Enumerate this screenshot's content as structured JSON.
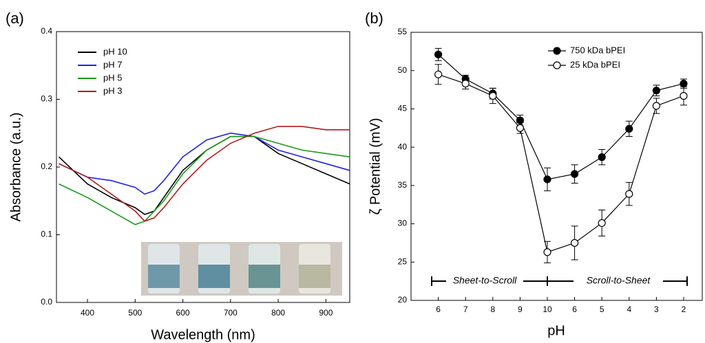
{
  "chart_data": [
    {
      "type": "line",
      "panel_label": "(a)",
      "x_label": "Wavelength (nm)",
      "y_label": "Absorbance (a.u.)",
      "x": [
        340,
        400,
        450,
        500,
        520,
        540,
        560,
        600,
        650,
        700,
        750,
        800,
        850,
        900,
        950
      ],
      "series": [
        {
          "name": "pH 10",
          "color": "#000000",
          "values": [
            0.215,
            0.175,
            0.155,
            0.14,
            0.13,
            0.135,
            0.155,
            0.195,
            0.225,
            0.245,
            0.245,
            0.22,
            0.205,
            0.19,
            0.175
          ]
        },
        {
          "name": "pH 7",
          "color": "#1f1fe6",
          "values": [
            0.205,
            0.185,
            0.18,
            0.17,
            0.16,
            0.165,
            0.18,
            0.215,
            0.24,
            0.25,
            0.245,
            0.225,
            0.215,
            0.205,
            0.195
          ]
        },
        {
          "name": "pH 5",
          "color": "#1a9a1a",
          "values": [
            0.175,
            0.155,
            0.135,
            0.115,
            0.12,
            0.135,
            0.15,
            0.19,
            0.225,
            0.245,
            0.245,
            0.235,
            0.225,
            0.22,
            0.215
          ]
        },
        {
          "name": "pH 3",
          "color": "#b01c1c",
          "values": [
            0.205,
            0.185,
            0.16,
            0.135,
            0.12,
            0.125,
            0.14,
            0.175,
            0.21,
            0.235,
            0.25,
            0.26,
            0.26,
            0.255,
            0.255
          ]
        }
      ],
      "xlim": [
        335,
        950
      ],
      "ylim": [
        0,
        0.4
      ],
      "xticks": [
        400,
        500,
        600,
        700,
        800,
        900
      ],
      "yticks": [
        {
          "value": 0,
          "label": "0.0"
        },
        0.1,
        0.2,
        0.3,
        0.4
      ],
      "legend": "upper left"
    },
    {
      "type": "errorbar-line",
      "panel_label": "(b)",
      "x_label": "pH",
      "y_label": "ζ Potential (mV)",
      "categories": [
        "6",
        "7",
        "8",
        "9",
        "10",
        "6",
        "5",
        "4",
        "3",
        "2"
      ],
      "series": [
        {
          "name": "750 kDa bPEI",
          "color": "#000000",
          "marker": "filled",
          "values": [
            52.1,
            48.9,
            47.0,
            43.5,
            35.8,
            36.5,
            38.7,
            42.4,
            47.4,
            48.3
          ],
          "errors": [
            0.8,
            0.5,
            0.7,
            0.7,
            1.5,
            1.2,
            1.0,
            1.0,
            0.7,
            0.6
          ]
        },
        {
          "name": "25 kDa bPEI",
          "color": "#000000",
          "marker": "open",
          "values": [
            49.5,
            48.3,
            46.7,
            42.5,
            26.3,
            27.5,
            30.1,
            33.9,
            45.4,
            46.7
          ],
          "errors": [
            1.3,
            0.7,
            1.0,
            0.7,
            1.4,
            2.2,
            1.7,
            1.5,
            1.0,
            1.2
          ]
        }
      ],
      "ylim": [
        20,
        55
      ],
      "yticks": [
        20,
        25,
        30,
        35,
        40,
        45,
        50,
        55
      ],
      "annotations": [
        "Sheet-to-Scroll",
        "Scroll-to-Sheet"
      ],
      "legend": "upper right"
    }
  ]
}
